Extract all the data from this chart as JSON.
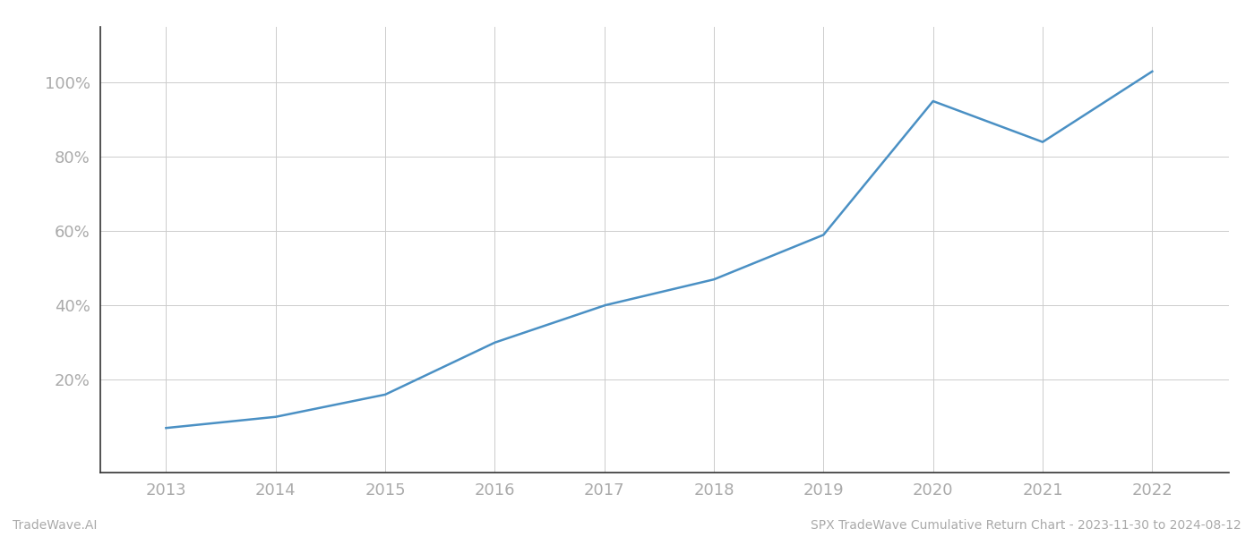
{
  "x_years": [
    2013,
    2014,
    2015,
    2016,
    2017,
    2018,
    2019,
    2020,
    2021,
    2022
  ],
  "y_values": [
    7,
    10,
    16,
    30,
    40,
    47,
    59,
    95,
    84,
    103
  ],
  "line_color": "#4a90c4",
  "line_width": 1.8,
  "background_color": "#ffffff",
  "grid_color": "#cccccc",
  "ytick_labels": [
    "20%",
    "40%",
    "60%",
    "80%",
    "100%"
  ],
  "ytick_values": [
    20,
    40,
    60,
    80,
    100
  ],
  "footer_left": "TradeWave.AI",
  "footer_right": "SPX TradeWave Cumulative Return Chart - 2023-11-30 to 2024-08-12",
  "footer_color": "#aaaaaa",
  "footer_fontsize": 10,
  "tick_color": "#aaaaaa",
  "tick_fontsize": 13,
  "ylim": [
    -5,
    115
  ],
  "xlim_start": 2012.4,
  "xlim_end": 2022.7,
  "spine_bottom_color": "#333333",
  "spine_left_color": "#333333"
}
